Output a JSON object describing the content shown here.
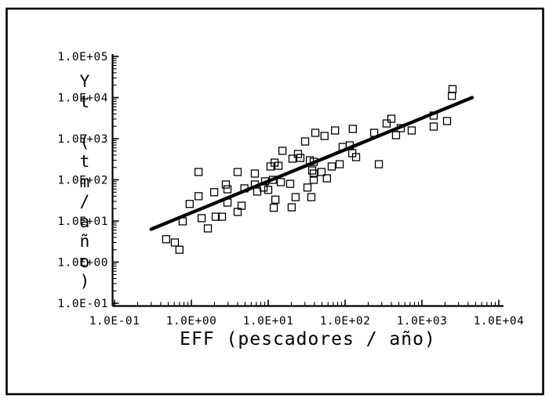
{
  "figure": {
    "background": "#ffffff",
    "ink_color": "#000000",
    "border_color": "#000000"
  },
  "chart_data": {
    "type": "scatter",
    "title": "",
    "xlabel": "EFF (pescadores / año)",
    "ylabel": "Yt (tm/año)",
    "ylabel_stacked": [
      "Y",
      "t",
      "",
      "(",
      "t",
      "m",
      "/",
      "a",
      "ñ",
      "o",
      ")"
    ],
    "x_scale": "log",
    "y_scale": "log",
    "xlim": [
      0.1,
      10000
    ],
    "ylim": [
      0.1,
      100000
    ],
    "x_ticks": [
      "1.0E-01",
      "1.0E+00",
      "1.0E+01",
      "1.0E+02",
      "1.0E+03",
      "1.0E+04"
    ],
    "y_ticks": [
      "1.0E-01",
      "1.0E+00",
      "1.0E+01",
      "1.0E+02",
      "1.0E+03",
      "1.0E+04",
      "1.0E+05"
    ],
    "grid": false,
    "legend": false,
    "marker": "open-square",
    "marker_color": "#000000",
    "points": [
      [
        0.47,
        3.6
      ],
      [
        0.61,
        3.0
      ],
      [
        0.7,
        2.0
      ],
      [
        0.77,
        9.8
      ],
      [
        0.95,
        26
      ],
      [
        1.24,
        40
      ],
      [
        1.36,
        11.7
      ],
      [
        1.64,
        6.6
      ],
      [
        1.98,
        50
      ],
      [
        2.07,
        12.7
      ],
      [
        2.5,
        12.7
      ],
      [
        2.81,
        77
      ],
      [
        2.95,
        59
      ],
      [
        2.95,
        28
      ],
      [
        4.0,
        16.6
      ],
      [
        4.5,
        23.5
      ],
      [
        4.9,
        62
      ],
      [
        1.24,
        155
      ],
      [
        4.0,
        155
      ],
      [
        6.7,
        142
      ],
      [
        6.7,
        77
      ],
      [
        7.2,
        52
      ],
      [
        8.7,
        65
      ],
      [
        9.1,
        92
      ],
      [
        11.5,
        100
      ],
      [
        10.0,
        57
      ],
      [
        12.4,
        33
      ],
      [
        11.8,
        21
      ],
      [
        10.7,
        211
      ],
      [
        12.1,
        262
      ],
      [
        13.6,
        220
      ],
      [
        15.3,
        507
      ],
      [
        20.7,
        327
      ],
      [
        24.4,
        425
      ],
      [
        26.2,
        341
      ],
      [
        30.2,
        857
      ],
      [
        34.8,
        299
      ],
      [
        39.1,
        274
      ],
      [
        37.3,
        169
      ],
      [
        39.1,
        142
      ],
      [
        41,
        1390
      ],
      [
        54,
        1167
      ],
      [
        49.4,
        155
      ],
      [
        67,
        211
      ],
      [
        74,
        1585
      ],
      [
        85,
        240
      ],
      [
        93,
        631
      ],
      [
        115,
        689
      ],
      [
        124,
        444
      ],
      [
        139,
        357
      ],
      [
        126,
        1730
      ],
      [
        239,
        1390
      ],
      [
        275,
        240
      ],
      [
        347,
        2350
      ],
      [
        400,
        3060
      ],
      [
        460,
        1219
      ],
      [
        530,
        1807
      ],
      [
        736,
        1585
      ],
      [
        1422,
        3648
      ],
      [
        1422,
        1972
      ],
      [
        2122,
        2685
      ],
      [
        2450,
        11000
      ],
      [
        2500,
        16000
      ],
      [
        19.3,
        80
      ],
      [
        32.4,
        65
      ],
      [
        22.7,
        38
      ],
      [
        36.4,
        38
      ],
      [
        20.2,
        21.5
      ],
      [
        39.1,
        100
      ],
      [
        58,
        109
      ],
      [
        14.6,
        88
      ]
    ],
    "fit_line": {
      "x1": 0.3,
      "y1": 6.3,
      "x2": 4500,
      "y2": 10000
    }
  }
}
